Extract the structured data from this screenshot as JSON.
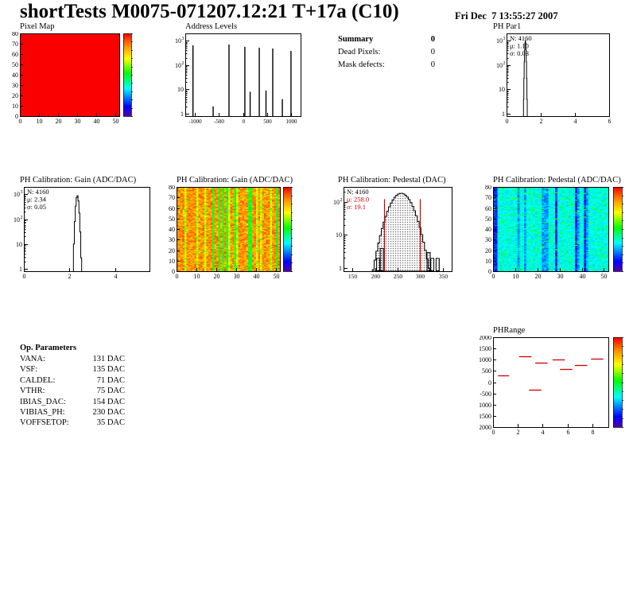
{
  "header": {
    "title": "shortTests M0075-071207.12:21 T+17a (C10)",
    "datetime": "Fri Dec  7 13:55:27 2007"
  },
  "summary": {
    "title": "Summary",
    "value": "0",
    "rows": [
      {
        "label": "Dead Pixels:",
        "value": "0"
      },
      {
        "label": "Mask defects:",
        "value": "0"
      }
    ]
  },
  "op_parameters": {
    "title": "Op. Parameters",
    "rows": [
      {
        "label": "VANA:",
        "value": "131 DAC"
      },
      {
        "label": "VSF:",
        "value": "135 DAC"
      },
      {
        "label": "CALDEL:",
        "value": "71 DAC"
      },
      {
        "label": "VTHR:",
        "value": "75 DAC"
      },
      {
        "label": "IBIAS_DAC:",
        "value": "154 DAC"
      },
      {
        "label": "VIBIAS_PH:",
        "value": "230 DAC"
      },
      {
        "label": "VOFFSETOP:",
        "value": "35 DAC"
      }
    ]
  },
  "colors": {
    "accent_red": "#d40000",
    "hist_line": "#000000",
    "uniform_map_red": "#fb0000"
  },
  "chart_data": [
    {
      "id": "pixel_map",
      "type": "heatmap",
      "title": "Pixel Map",
      "x_range": [
        0,
        52
      ],
      "y_range": [
        0,
        80
      ],
      "x_ticks": [
        0,
        10,
        20,
        30,
        40,
        50
      ],
      "y_ticks": [
        0,
        10,
        20,
        30,
        40,
        50,
        60,
        70,
        80
      ],
      "uniform": true,
      "note": "all pixels at same value - solid red fill, rainbow colorbar at right"
    },
    {
      "id": "address_levels",
      "type": "bar",
      "title": "Address Levels",
      "x_range": [
        -1200,
        1200
      ],
      "x_ticks": [
        -1000,
        -500,
        0,
        500,
        1000
      ],
      "y_scale": "log",
      "y_tick_labels": [
        "1",
        "10",
        "10^2",
        "10^3"
      ],
      "spikes": [
        [
          -1040,
          650
        ],
        [
          -620,
          2
        ],
        [
          -290,
          700
        ],
        [
          40,
          560
        ],
        [
          150,
          8
        ],
        [
          340,
          520
        ],
        [
          480,
          9
        ],
        [
          620,
          480
        ],
        [
          820,
          4
        ],
        [
          1000,
          380
        ]
      ]
    },
    {
      "id": "ph_par1",
      "type": "histogram",
      "title": "PH Par1",
      "stats": {
        "n": "N: 4160",
        "mu": "μ: 1.10",
        "sigma": "σ: 0.03"
      },
      "gauss": {
        "mean": 1.1,
        "sigma": 0.03,
        "peak": 1000,
        "bin_width": 0.02
      },
      "x_range": [
        0,
        6
      ],
      "x_ticks": [
        0,
        2,
        4,
        6
      ],
      "y_scale": "log",
      "y_tick_labels": [
        "1",
        "10",
        "10^2",
        "10^3"
      ]
    },
    {
      "id": "gain_hist",
      "type": "histogram",
      "title": "PH Calibration: Gain (ADC/DAC)",
      "stats": {
        "n": "N: 4160",
        "mu": "μ: 2.34",
        "sigma": "σ: 0.05"
      },
      "gauss": {
        "mean": 2.34,
        "sigma": 0.05,
        "peak": 900,
        "bin_width": 0.04
      },
      "x_range": [
        0,
        5.5
      ],
      "x_ticks": [
        0,
        2,
        4
      ],
      "y_scale": "log",
      "y_tick_labels": [
        "1",
        "10",
        "10^2",
        "10^3"
      ]
    },
    {
      "id": "gain_map",
      "type": "heatmap",
      "title": "PH Calibration: Gain (ADC/DAC)",
      "x_range": [
        0,
        52
      ],
      "y_range": [
        0,
        80
      ],
      "x_ticks": [
        0,
        10,
        20,
        30,
        40,
        50
      ],
      "y_ticks": [
        0,
        10,
        20,
        30,
        40,
        50,
        60,
        70,
        80
      ],
      "note": "per-pixel gain map, mostly red/orange with yellow-green vertical column bands, rainbow colorbar",
      "seed": 42
    },
    {
      "id": "pedestal_hist",
      "type": "histogram",
      "title": "PH Calibration: Pedestal (DAC)",
      "stats": {
        "n": "N: 4160",
        "mu": "μ: 258.0",
        "sigma": "σ: 19.1"
      },
      "gauss": {
        "mean": 258.0,
        "sigma": 19.1,
        "peak": 180,
        "bin_width": 4
      },
      "outliers": [
        [
          206,
          2
        ],
        [
          214,
          4
        ],
        [
          318,
          3
        ],
        [
          326,
          2
        ],
        [
          338,
          2
        ]
      ],
      "red_lines": [
        220,
        300
      ],
      "x_range": [
        130,
        370
      ],
      "x_ticks": [
        150,
        200,
        250,
        300,
        350
      ],
      "y_scale": "log",
      "y_tick_labels": [
        "1",
        "10",
        "10^2"
      ]
    },
    {
      "id": "pedestal_map",
      "type": "heatmap",
      "title": "PH Calibration: Pedestal (ADC/DAC)",
      "x_range": [
        0,
        52
      ],
      "y_range": [
        0,
        80
      ],
      "x_ticks": [
        0,
        10,
        20,
        30,
        40,
        50
      ],
      "y_ticks": [
        0,
        10,
        20,
        30,
        40,
        50,
        60,
        70,
        80
      ],
      "note": "per-pixel pedestal map, mostly cyan/teal with dark blue vertical bands and green speckle, rainbow colorbar",
      "seed": 7
    },
    {
      "id": "ph_range",
      "type": "scatter",
      "title": "PHRange",
      "x_range": [
        0,
        9.3
      ],
      "x_ticks": [
        0,
        2,
        4,
        6,
        8
      ],
      "y_range": [
        -2000,
        2000
      ],
      "y_tick_labels": [
        "2000",
        "1500",
        "1000",
        "500",
        "0",
        "-500",
        "1000",
        "1500",
        "2000"
      ],
      "segments": [
        [
          0.4,
          1.3,
          300
        ],
        [
          2.1,
          3.1,
          1150
        ],
        [
          3.4,
          4.4,
          850
        ],
        [
          2.9,
          3.9,
          -350
        ],
        [
          4.8,
          5.8,
          1000
        ],
        [
          5.4,
          6.4,
          600
        ],
        [
          6.6,
          7.6,
          750
        ],
        [
          7.9,
          8.9,
          1050
        ]
      ]
    }
  ]
}
